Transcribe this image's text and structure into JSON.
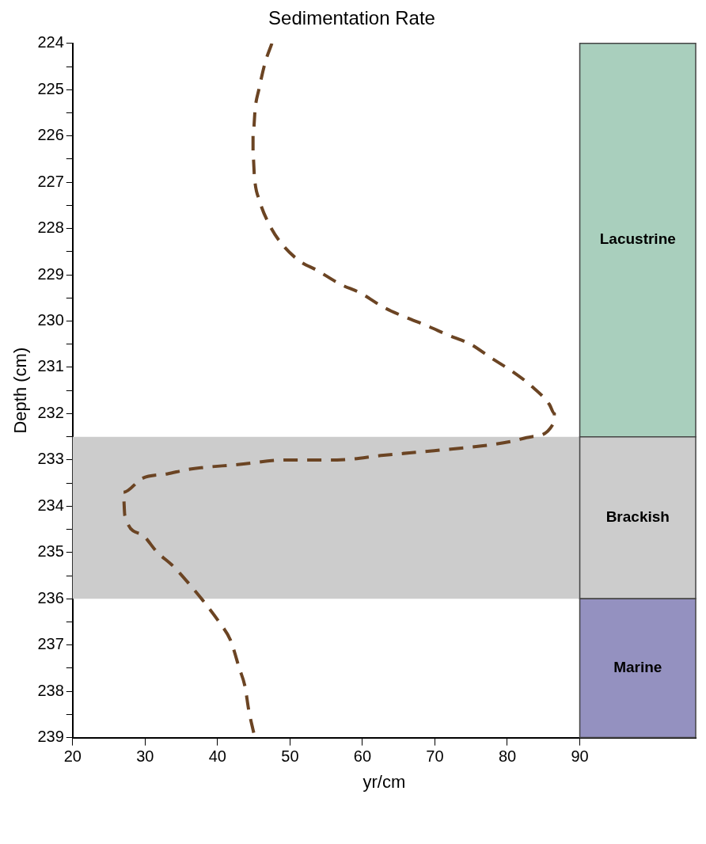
{
  "chart_data": {
    "type": "line",
    "title": "Sedimentation Rate",
    "xlabel": "yr/cm",
    "ylabel": "Depth (cm)",
    "xlim": [
      20,
      106
    ],
    "xticks": [
      20,
      30,
      40,
      50,
      60,
      70,
      80,
      90
    ],
    "ylim": [
      239,
      224
    ],
    "yticks": [
      224,
      {
        "value": 224.5,
        "label": null
      },
      225,
      {
        "value": 225.5,
        "label": null
      },
      226,
      {
        "value": 226.5,
        "label": null
      },
      227,
      {
        "value": 227.5,
        "label": null
      },
      228,
      {
        "value": 228.5,
        "label": null
      },
      229,
      {
        "value": 229.5,
        "label": null
      },
      230,
      {
        "value": 230.5,
        "label": null
      },
      231,
      {
        "value": 231.5,
        "label": null
      },
      232,
      {
        "value": 232.5,
        "label": null
      },
      233,
      {
        "value": 233.5,
        "label": null
      },
      234,
      {
        "value": 234.5,
        "label": null
      },
      235,
      {
        "value": 235.5,
        "label": null
      },
      236,
      {
        "value": 236.5,
        "label": null
      },
      237,
      {
        "value": 237.5,
        "label": null
      },
      238,
      {
        "value": 238.5,
        "label": null
      },
      239
    ],
    "grid": false,
    "legend": false,
    "marker": "none",
    "line_style": "dashed",
    "series": [
      {
        "color": "#6b4423",
        "x": [
          47.5,
          46.6,
          45.7,
          45.2,
          44.9,
          44.9,
          45.1,
          45.8,
          47.1,
          48.7,
          51.3,
          53.7,
          56.9,
          59.8,
          62.9,
          65.7,
          68.9,
          71.8,
          74.9,
          77.8,
          80.8,
          83.3,
          85.8,
          86.5,
          86.4,
          83.3,
          80.6,
          76.4,
          69.9,
          62.9,
          56.5,
          49.6,
          42.8,
          36.2,
          33.1,
          29.6,
          27.0,
          27.2,
          29.4,
          31.7,
          33.9,
          36.2,
          38.3,
          40.2,
          41.8,
          43.0,
          43.8,
          44.3,
          45.0
        ],
        "values": [
          224.0,
          224.4,
          225.0,
          225.4,
          226.0,
          226.4,
          226.9,
          227.4,
          227.9,
          228.3,
          228.7,
          228.9,
          229.2,
          229.4,
          229.7,
          229.9,
          230.1,
          230.3,
          230.5,
          230.8,
          231.1,
          231.4,
          231.8,
          232.0,
          232.2,
          232.5,
          232.6,
          232.7,
          232.8,
          232.9,
          233.0,
          233.0,
          233.1,
          233.2,
          233.3,
          233.4,
          233.7,
          234.2,
          234.6,
          235.0,
          235.3,
          235.7,
          236.1,
          236.5,
          236.9,
          237.5,
          237.9,
          238.4,
          238.9
        ]
      }
    ],
    "bands": [
      {
        "axis": "y",
        "from": 232.5,
        "to": 236,
        "color": "#cccccc"
      },
      {
        "axis": "y",
        "from": 224,
        "to": 232.5,
        "label": "Lacustrine",
        "color": "#a9cfbd"
      },
      {
        "axis": "y",
        "from": 232.5,
        "to": 236,
        "label": "Brackish",
        "color": "#cccccc"
      },
      {
        "axis": "y",
        "from": 236,
        "to": 239,
        "label": "Marine",
        "color": "#9491c0"
      }
    ]
  }
}
